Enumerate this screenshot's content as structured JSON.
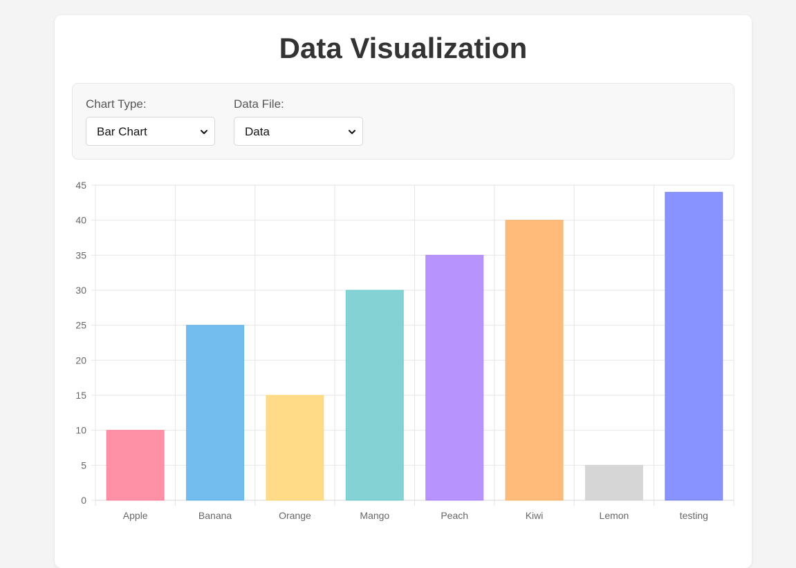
{
  "page": {
    "title": "Data Visualization"
  },
  "controls": {
    "chart_type": {
      "label": "Chart Type:",
      "selected": "Bar Chart"
    },
    "data_file": {
      "label": "Data File:",
      "selected": "Data"
    }
  },
  "icons": {
    "select_chevron": "chevron-down-icon"
  },
  "colors": {
    "title": "#333333",
    "grid": "#e5e5e5",
    "tick_label": "#666666"
  },
  "chart_data": {
    "type": "bar",
    "categories": [
      "Apple",
      "Banana",
      "Orange",
      "Mango",
      "Peach",
      "Kiwi",
      "Lemon",
      "testing"
    ],
    "values": [
      10,
      25,
      15,
      30,
      35,
      40,
      5,
      44
    ],
    "ylim": [
      0,
      45
    ],
    "yticks": [
      0,
      5,
      10,
      15,
      20,
      25,
      30,
      35,
      40,
      45
    ],
    "grid": true,
    "legend": "none",
    "bar_colors": [
      "#ff91a6",
      "#73bcee",
      "#ffdb87",
      "#84d2d4",
      "#b794fd",
      "#ffbb79",
      "#d6d6d6",
      "#8893ff"
    ],
    "bar_borders": [
      "#ff6384",
      "#36a2eb",
      "#ffce56",
      "#4bc0c0",
      "#9966ff",
      "#ff9f40",
      "#c9cbcf",
      "#5a67d8"
    ]
  }
}
